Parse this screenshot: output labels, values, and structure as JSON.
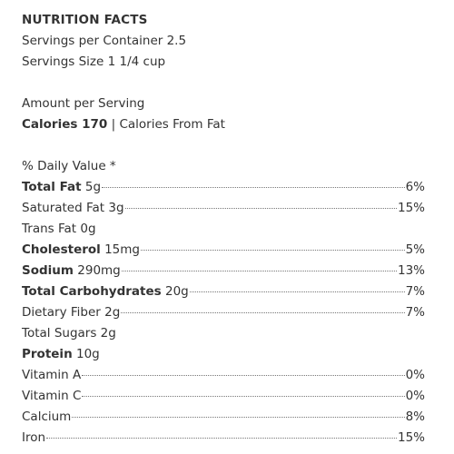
{
  "title": "NUTRITION FACTS",
  "servings_per_container": "Servings per Container 2.5",
  "serving_size": "Servings Size 1 1/4 cup",
  "amount_per_serving": "Amount per Serving",
  "calories": "Calories 170",
  "separator": "|",
  "calories_from_fat": "Calories From Fat",
  "daily_value_header": "% Daily Value *",
  "nutrients": [
    {
      "label": "Total Fat",
      "amount": "5g",
      "dv": "6%",
      "bold": true
    },
    {
      "label": "Saturated Fat",
      "amount": "3g",
      "dv": "15%",
      "bold": false
    },
    {
      "label": "Trans Fat",
      "amount": "0g",
      "bold": false
    },
    {
      "label": "Cholesterol",
      "amount": "15mg",
      "dv": "5%",
      "bold": true
    },
    {
      "label": "Sodium",
      "amount": "290mg",
      "dv": "13%",
      "bold": true
    },
    {
      "label": "Total Carbohydrates",
      "amount": "20g",
      "dv": "7%",
      "bold": true
    },
    {
      "label": "Dietary Fiber",
      "amount": "2g",
      "dv": "7%",
      "bold": false
    },
    {
      "label": "Total Sugars",
      "amount": "2g",
      "bold": false
    },
    {
      "label": "Protein",
      "amount": "10g",
      "bold": true
    },
    {
      "label": "Vitamin A",
      "dv": "0%",
      "bold": false
    },
    {
      "label": "Vitamin C",
      "dv": "0%",
      "bold": false
    },
    {
      "label": "Calcium",
      "dv": "8%",
      "bold": false
    },
    {
      "label": "Iron",
      "dv": "15%",
      "bold": false
    }
  ]
}
